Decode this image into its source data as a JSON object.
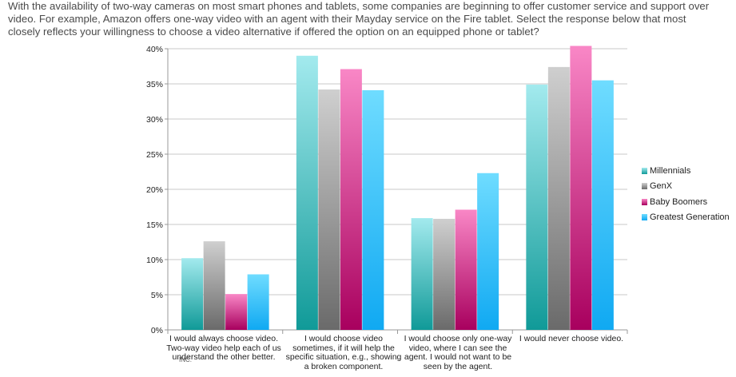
{
  "question": "With the availability of two-way cameras on most smart phones and tablets, some companies are beginning to offer customer service and support over video. For example, Amazon offers one-way video with an agent with their Mayday service on the Fire tablet. Select the response below that most closely reflects your willingness to choose a video alternative if offered the option on an equipped phone or tablet?",
  "stray_text": "INC.",
  "colors": {
    "Millennials": [
      "#a3eaee",
      "#109a98"
    ],
    "GenX": [
      "#cfcfcf",
      "#6a6a6a"
    ],
    "Baby Boomers": [
      "#f987c6",
      "#a8005e"
    ],
    "Greatest Generation": [
      "#6fdcff",
      "#10a9f2"
    ]
  },
  "chart_data": {
    "type": "bar",
    "title": "",
    "xlabel": "",
    "ylabel": "",
    "ylim": [
      0,
      40
    ],
    "yticks": [
      "0%",
      "5%",
      "10%",
      "15%",
      "20%",
      "25%",
      "30%",
      "35%",
      "40%"
    ],
    "grid": true,
    "legend_position": "right",
    "categories": [
      "I would always choose video. Two-way video help each of us understand the other better.",
      "I would choose video sometimes, if it will help the specific situation, e.g., showing a broken component.",
      "I would choose only one-way video, where I can see the agent.  I would not want to be seen by the agent.",
      "I would never choose video."
    ],
    "series": [
      {
        "name": "Millennials",
        "values": [
          10.2,
          39.0,
          15.9,
          34.9
        ]
      },
      {
        "name": "GenX",
        "values": [
          12.6,
          34.2,
          15.8,
          37.4
        ]
      },
      {
        "name": "Baby Boomers",
        "values": [
          5.1,
          37.1,
          17.1,
          40.4
        ]
      },
      {
        "name": "Greatest Generation",
        "values": [
          7.9,
          34.1,
          22.3,
          35.5
        ]
      }
    ]
  }
}
